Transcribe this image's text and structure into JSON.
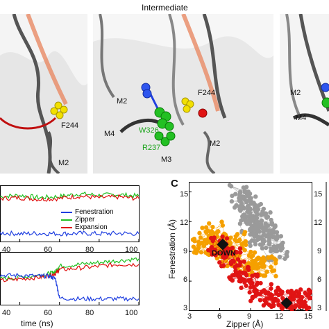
{
  "top": {
    "title": "Intermediate",
    "left_labels": {
      "f244": "F244",
      "m2": "M2"
    },
    "mid_labels": {
      "m2": "M2",
      "f244": "F244",
      "m4": "M4",
      "w326": "W326",
      "r237": "R237",
      "m3": "M3",
      "m2b": "M2"
    },
    "right_labels": {
      "m2": "M2",
      "m4": "M4"
    }
  },
  "colors": {
    "fenestration": "#1f3fe0",
    "zipper": "#21c021",
    "expansion": "#e01010",
    "gray": "#9a9a9a",
    "orange": "#f5a000",
    "red": "#e01414"
  },
  "panel_b": {
    "legend": [
      "Fenestration",
      "Zipper",
      "Expansion"
    ],
    "top_ticks": [
      "40",
      "60",
      "80",
      "100"
    ],
    "bottom_ticks": [
      "40",
      "60",
      "80",
      "100"
    ],
    "xlabel": "time (ns)"
  },
  "panel_c": {
    "letter": "C",
    "xlabel": "Zipper (Å)",
    "ylabel": "Fenestration (Å)",
    "xticks": [
      "3",
      "6",
      "9",
      "12",
      "15"
    ],
    "yticks": [
      "3",
      "6",
      "9",
      "12",
      "15"
    ],
    "states": [
      {
        "label": "DOWN",
        "x": 6.3,
        "y": 9.7
      },
      {
        "label": "UP",
        "x": 12.5,
        "y": 3.8
      }
    ]
  },
  "right_fragment": {
    "ytick_labels": [
      "15",
      "12",
      "9",
      "6",
      "3"
    ]
  },
  "chart_data": [
    {
      "type": "line",
      "panel": "B-top",
      "xlim": [
        30,
        100
      ],
      "series": [
        {
          "name": "Zipper",
          "x": [
            30,
            40,
            50,
            60,
            70,
            80,
            90,
            100
          ],
          "values": [
            13.5,
            13.8,
            13.2,
            13.5,
            14.2,
            13.8,
            14.0,
            13.6
          ]
        },
        {
          "name": "Expansion",
          "x": [
            30,
            40,
            50,
            60,
            70,
            80,
            90,
            100
          ],
          "values": [
            13.0,
            13.2,
            12.8,
            13.0,
            13.6,
            13.2,
            13.4,
            13.0
          ]
        },
        {
          "name": "Fenestration",
          "x": [
            30,
            40,
            50,
            60,
            70,
            80,
            90,
            100
          ],
          "values": [
            4.2,
            4.0,
            4.1,
            4.0,
            4.1,
            4.0,
            4.1,
            4.0
          ]
        }
      ]
    },
    {
      "type": "line",
      "panel": "B-bottom",
      "xlim": [
        30,
        100
      ],
      "series": [
        {
          "name": "Zipper",
          "x": [
            30,
            40,
            50,
            55,
            58,
            60,
            70,
            80,
            90,
            100
          ],
          "values": [
            9.0,
            9.5,
            10.0,
            10.5,
            11.0,
            12.5,
            13.0,
            13.5,
            14.0,
            14.5
          ]
        },
        {
          "name": "Expansion",
          "x": [
            30,
            40,
            50,
            55,
            58,
            60,
            70,
            80,
            90,
            100
          ],
          "values": [
            8.5,
            9.0,
            9.5,
            10.0,
            10.5,
            11.5,
            12.0,
            12.5,
            13.0,
            13.0
          ]
        },
        {
          "name": "Fenestration",
          "x": [
            30,
            40,
            50,
            55,
            58,
            60,
            70,
            80,
            90,
            100
          ],
          "values": [
            10.0,
            10.0,
            9.8,
            9.8,
            9.0,
            3.8,
            3.6,
            3.6,
            3.6,
            3.6
          ]
        }
      ]
    },
    {
      "type": "scatter",
      "panel": "C",
      "xlim": [
        3,
        15
      ],
      "ylim": [
        3,
        16
      ],
      "series": [
        {
          "name": "gray",
          "x": [
            8.0,
            8.5,
            9.0,
            9.5,
            10.0,
            10.5,
            11.0,
            11.5,
            9.0,
            10.0
          ],
          "values": [
            15.0,
            14.0,
            13.0,
            12.5,
            12.0,
            11.0,
            10.0,
            9.0,
            11.5,
            10.5
          ]
        },
        {
          "name": "orange",
          "x": [
            4.5,
            5.0,
            5.5,
            6.0,
            6.5,
            7.0,
            7.5,
            8.5,
            9.5,
            10.5
          ],
          "values": [
            9.5,
            10.5,
            11.0,
            9.5,
            9.0,
            8.5,
            10.0,
            8.0,
            7.5,
            7.5
          ]
        },
        {
          "name": "red",
          "x": [
            6.0,
            7.0,
            8.0,
            9.0,
            10.0,
            11.0,
            12.0,
            13.0,
            14.0,
            14.5
          ],
          "values": [
            9.5,
            8.5,
            7.0,
            6.0,
            5.0,
            4.5,
            4.0,
            3.8,
            4.2,
            4.0
          ]
        }
      ]
    }
  ]
}
